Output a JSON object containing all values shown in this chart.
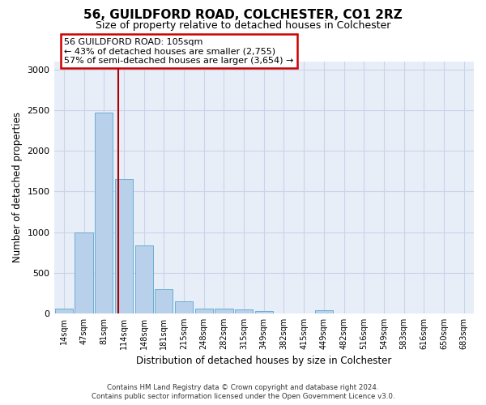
{
  "title": "56, GUILDFORD ROAD, COLCHESTER, CO1 2RZ",
  "subtitle": "Size of property relative to detached houses in Colchester",
  "xlabel": "Distribution of detached houses by size in Colchester",
  "ylabel": "Number of detached properties",
  "bin_labels": [
    "14sqm",
    "47sqm",
    "81sqm",
    "114sqm",
    "148sqm",
    "181sqm",
    "215sqm",
    "248sqm",
    "282sqm",
    "315sqm",
    "349sqm",
    "382sqm",
    "415sqm",
    "449sqm",
    "482sqm",
    "516sqm",
    "549sqm",
    "583sqm",
    "616sqm",
    "650sqm",
    "683sqm"
  ],
  "bar_heights": [
    60,
    1000,
    2470,
    1650,
    840,
    300,
    145,
    55,
    55,
    50,
    25,
    0,
    0,
    35,
    0,
    0,
    0,
    0,
    0,
    0,
    0
  ],
  "bar_color": "#b8d0ea",
  "bar_edgecolor": "#6aaed6",
  "vline_x": 2.72,
  "annotation_text": "56 GUILDFORD ROAD: 105sqm\n← 43% of detached houses are smaller (2,755)\n57% of semi-detached houses are larger (3,654) →",
  "annotation_box_facecolor": "#ffffff",
  "annotation_box_edgecolor": "#cc0000",
  "vline_color": "#aa0000",
  "ylim": [
    0,
    3100
  ],
  "yticks": [
    0,
    500,
    1000,
    1500,
    2000,
    2500,
    3000
  ],
  "grid_color": "#c8d4e8",
  "plot_bgcolor": "#e8eef8",
  "footer_line1": "Contains HM Land Registry data © Crown copyright and database right 2024.",
  "footer_line2": "Contains public sector information licensed under the Open Government Licence v3.0."
}
